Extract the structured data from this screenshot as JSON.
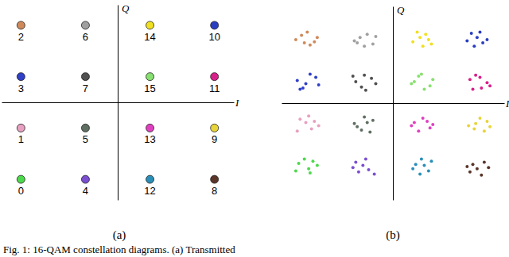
{
  "chart_data": [
    {
      "type": "scatter",
      "title": "(a)",
      "x_label": "I",
      "y_label": "Q",
      "xlim": [
        -3.6,
        3.6
      ],
      "ylim": [
        -3.8,
        3.8
      ],
      "xticks": [],
      "yticks": [],
      "tick_labels": false,
      "marker": "circle",
      "x": [
        -3,
        -3,
        -3,
        -3,
        -1,
        -1,
        -1,
        -1,
        3,
        3,
        3,
        3,
        1,
        1,
        1,
        1
      ],
      "values": [
        -3,
        -1,
        3,
        1,
        -3,
        -1,
        3,
        1,
        -3,
        -1,
        3,
        1,
        -3,
        -1,
        3,
        1
      ],
      "labels": [
        0,
        1,
        2,
        3,
        4,
        5,
        6,
        7,
        8,
        9,
        10,
        11,
        12,
        13,
        14,
        15
      ],
      "colors": [
        "#4cd94c",
        "#e8a0c0",
        "#cf8a5a",
        "#3040c8",
        "#7a4fd0",
        "#5f6f62",
        "#a0a0a0",
        "#505050",
        "#5a3528",
        "#e8d43a",
        "#2a3fc0",
        "#d8208a",
        "#2a8fb8",
        "#e040c0",
        "#f0e020",
        "#88e070"
      ]
    },
    {
      "type": "scatter",
      "title": "(b)",
      "x_label": "I",
      "y_label": "Q",
      "xlim": [
        -3.9,
        3.9
      ],
      "ylim": [
        -4.5,
        4.5
      ],
      "xticks": [],
      "yticks": [],
      "tick_labels": false,
      "marker": "dot",
      "series": [
        {
          "color": "#4cd94c",
          "x": [
            -3.3,
            -2.9,
            -2.65,
            -3.1,
            -2.8,
            -3.4,
            -2.95
          ],
          "values": [
            -2.8,
            -3.25,
            -2.9,
            -2.6,
            -2.7,
            -3.15,
            -3.05
          ]
        },
        {
          "color": "#e8a0c0",
          "x": [
            -3.25,
            -2.85,
            -3.05,
            -2.6,
            -3.35,
            -2.95,
            -2.75
          ],
          "values": [
            -0.75,
            -1.2,
            -0.9,
            -1.05,
            -1.3,
            -0.6,
            -0.85
          ]
        },
        {
          "color": "#cf8a5a",
          "x": [
            -3.2,
            -2.75,
            -3.0,
            -3.4,
            -2.9,
            -2.65,
            -3.1
          ],
          "values": [
            3.15,
            2.85,
            3.3,
            2.95,
            2.7,
            3.05,
            2.8
          ]
        },
        {
          "color": "#3040c8",
          "x": [
            -2.7,
            -3.15,
            -3.35,
            -2.9,
            -3.05,
            -2.6,
            -3.25
          ],
          "values": [
            1.2,
            0.7,
            1.05,
            1.35,
            0.9,
            0.85,
            0.65
          ]
        },
        {
          "color": "#7a4fd0",
          "x": [
            -1.3,
            -0.85,
            -1.05,
            -0.65,
            -1.2,
            -0.95,
            -1.4
          ],
          "values": [
            -2.75,
            -3.1,
            -2.9,
            -3.3,
            -3.2,
            -2.6,
            -3.0
          ]
        },
        {
          "color": "#5f6f62",
          "x": [
            -0.7,
            -1.25,
            -1.0,
            -1.35,
            -0.8,
            -1.1,
            -0.9
          ],
          "values": [
            -0.8,
            -1.1,
            -0.65,
            -0.95,
            -1.35,
            -1.25,
            -0.9
          ]
        },
        {
          "color": "#a0a0a0",
          "x": [
            -1.35,
            -0.9,
            -0.7,
            -1.15,
            -0.6,
            -1.0,
            -1.25
          ],
          "values": [
            2.9,
            3.2,
            2.75,
            3.05,
            3.1,
            2.65,
            2.8
          ]
        },
        {
          "color": "#505050",
          "x": [
            -1.1,
            -0.75,
            -1.3,
            -0.95,
            -0.6,
            -1.4,
            -1.0
          ],
          "values": [
            0.75,
            1.15,
            1.0,
            0.6,
            0.9,
            1.25,
            1.3
          ]
        },
        {
          "color": "#5a3528",
          "x": [
            2.7,
            3.2,
            2.95,
            3.35,
            2.8,
            3.1,
            2.6
          ],
          "values": [
            -3.2,
            -2.75,
            -3.05,
            -3.0,
            -2.85,
            -3.35,
            -2.95
          ]
        },
        {
          "color": "#e8d43a",
          "x": [
            3.3,
            2.85,
            3.05,
            2.65,
            3.2,
            2.9,
            3.4
          ],
          "values": [
            -0.85,
            -1.2,
            -0.7,
            -1.05,
            -1.3,
            -0.95,
            -1.1
          ]
        },
        {
          "color": "#2a3fc0",
          "x": [
            2.75,
            3.15,
            2.95,
            3.3,
            2.85,
            3.05,
            2.6
          ],
          "values": [
            3.25,
            2.8,
            3.05,
            2.95,
            2.65,
            3.3,
            2.9
          ]
        },
        {
          "color": "#d8208a",
          "x": [
            3.1,
            2.7,
            3.3,
            2.9,
            3.4,
            2.8,
            3.05
          ],
          "values": [
            0.7,
            1.1,
            0.95,
            1.3,
            0.8,
            0.65,
            1.2
          ]
        },
        {
          "color": "#2a8fb8",
          "x": [
            0.8,
            1.25,
            0.95,
            1.35,
            0.7,
            1.1,
            1.0
          ],
          "values": [
            -2.85,
            -3.15,
            -3.3,
            -2.7,
            -3.05,
            -2.9,
            -2.6
          ]
        },
        {
          "color": "#e040c0",
          "x": [
            0.65,
            1.05,
            1.3,
            0.9,
            1.2,
            0.75,
            1.4
          ],
          "values": [
            -1.05,
            -0.7,
            -1.15,
            -1.3,
            -0.85,
            -0.9,
            -1.0
          ]
        },
        {
          "color": "#f0e020",
          "x": [
            1.15,
            0.7,
            0.95,
            1.35,
            0.85,
            1.25,
            1.05
          ],
          "values": [
            3.2,
            2.85,
            3.05,
            2.75,
            3.3,
            2.95,
            2.65
          ]
        },
        {
          "color": "#88e070",
          "x": [
            0.9,
            1.3,
            0.75,
            1.1,
            1.4,
            0.65,
            1.0
          ],
          "values": [
            1.25,
            0.8,
            1.0,
            0.65,
            1.1,
            0.9,
            1.35
          ]
        }
      ]
    }
  ],
  "caption": "Fig. 1: 16-QAM constellation diagrams. (a) Transmitted"
}
